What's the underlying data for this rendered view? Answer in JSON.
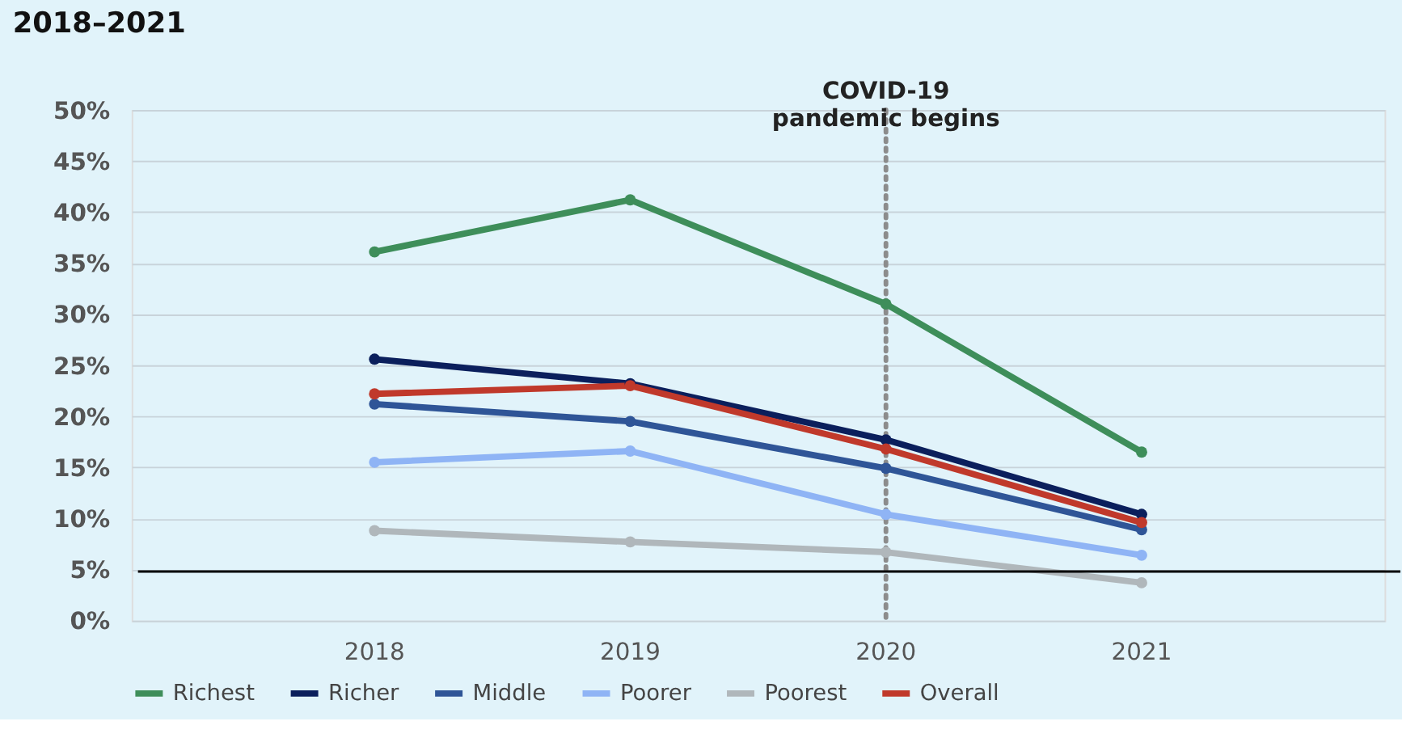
{
  "chart_data": {
    "type": "line",
    "title": "2018–2021",
    "categories": [
      "2018",
      "2019",
      "2020",
      "2021"
    ],
    "series": [
      {
        "name": "Richest",
        "color": "#3e8e5a",
        "values": [
          36.1,
          41.2,
          31.0,
          16.5
        ]
      },
      {
        "name": "Richer",
        "color": "#0b1f5c",
        "values": [
          25.6,
          23.2,
          17.7,
          10.4
        ]
      },
      {
        "name": "Middle",
        "color": "#2f5597",
        "values": [
          21.2,
          19.5,
          14.9,
          8.9
        ]
      },
      {
        "name": "Poorer",
        "color": "#8fb4f5",
        "values": [
          15.5,
          16.6,
          10.4,
          6.4
        ]
      },
      {
        "name": "Poorest",
        "color": "#b0b7bb",
        "values": [
          8.8,
          7.7,
          6.7,
          3.7
        ]
      },
      {
        "name": "Overall",
        "color": "#c0392b",
        "values": [
          22.2,
          23.0,
          16.8,
          9.6
        ]
      }
    ],
    "ylim": [
      0,
      50
    ],
    "yticks": [
      {
        "value": 0,
        "label": "0%"
      },
      {
        "value": 5,
        "label": "5%"
      },
      {
        "value": 10,
        "label": "10%"
      },
      {
        "value": 15,
        "label": "15%"
      },
      {
        "value": 20,
        "label": "20%"
      },
      {
        "value": 25,
        "label": "25%"
      },
      {
        "value": 30,
        "label": "30%"
      },
      {
        "value": 35,
        "label": "35%"
      },
      {
        "value": 40,
        "label": "40%"
      },
      {
        "value": 45,
        "label": "45%"
      },
      {
        "value": 50,
        "label": "50%"
      }
    ],
    "ref_lines": [
      {
        "axis": "x",
        "value": "2020",
        "label": "COVID-19\npandemic begins",
        "color": "#8c8c8c",
        "line_style": "dotted"
      },
      {
        "axis": "y",
        "value": 4.8,
        "color": "#000000",
        "line_style": "solid"
      }
    ],
    "grid": "y",
    "legend": "bottom",
    "marker": "circle",
    "line_style": "solid"
  }
}
